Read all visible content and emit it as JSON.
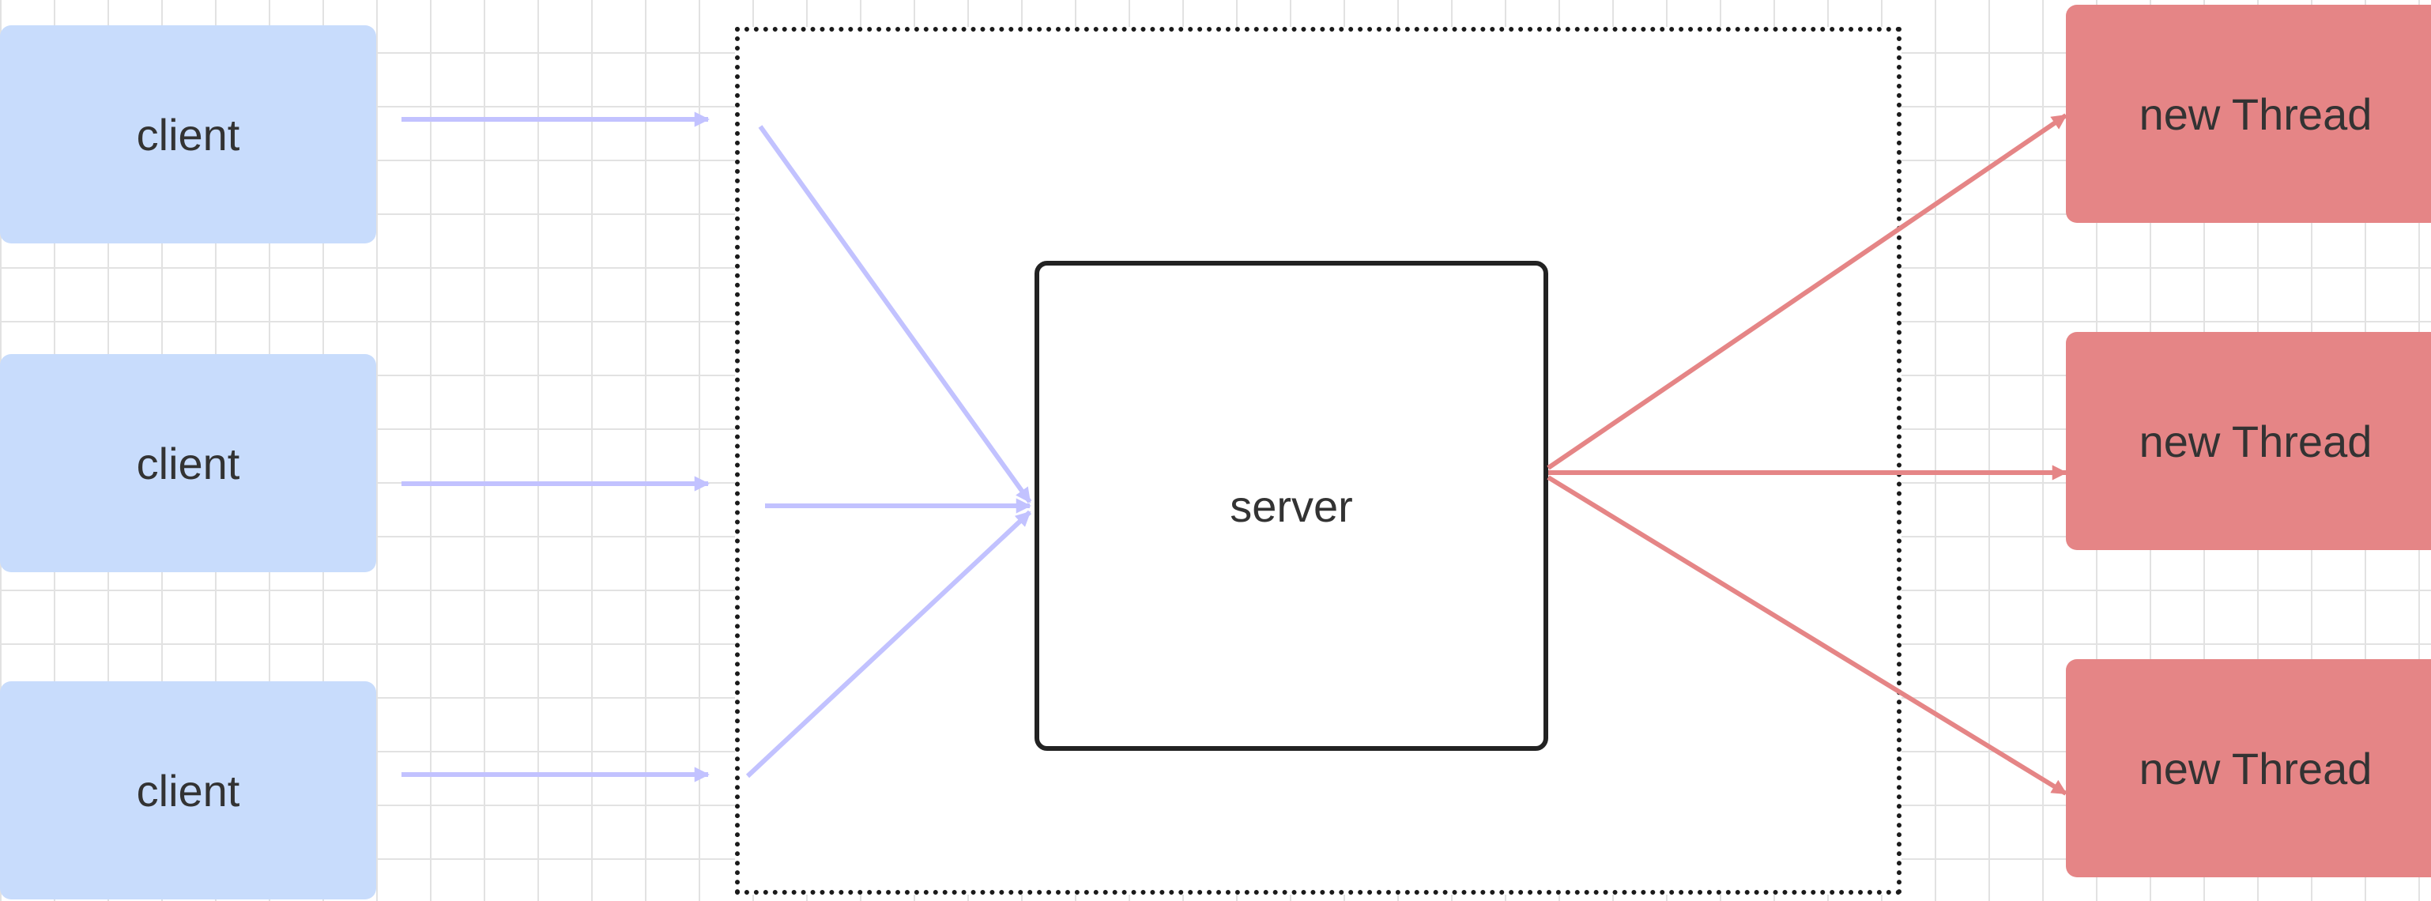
{
  "diagram": {
    "clients": [
      {
        "label": "client"
      },
      {
        "label": "client"
      },
      {
        "label": "client"
      }
    ],
    "server": {
      "label": "server"
    },
    "threads": [
      {
        "label": "new Thread"
      },
      {
        "label": "new Thread"
      },
      {
        "label": "new Thread"
      }
    ],
    "colors": {
      "client_fill": "#c8dcfc",
      "client_arrow": "#c2c2ff",
      "thread_fill": "#e58586",
      "thread_arrow": "#e58586",
      "server_border": "#222222",
      "grid": "#e2e2e2"
    }
  }
}
